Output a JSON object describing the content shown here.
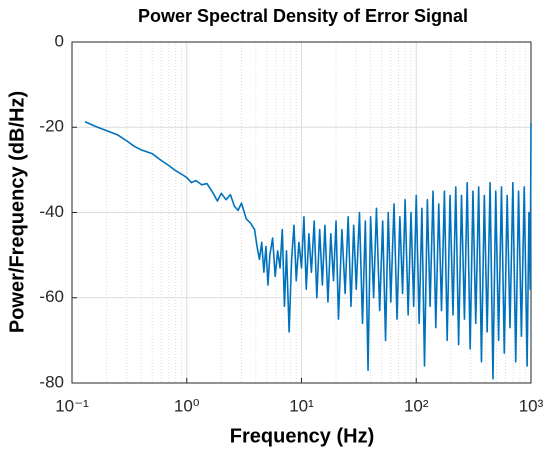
{
  "chart_data": {
    "type": "line",
    "title": "Power Spectral Density of Error Signal",
    "x_label": "Frequency (Hz)",
    "y_label": "Power/Frequency (dB/Hz)",
    "xscale": "log",
    "xlim": [
      0.1,
      1000
    ],
    "xticks": [
      {
        "value": 0.1,
        "label": "10⁻¹"
      },
      {
        "value": 1,
        "label": "10⁰"
      },
      {
        "value": 10,
        "label": "10¹"
      },
      {
        "value": 100,
        "label": "10²"
      },
      {
        "value": 1000,
        "label": "10³"
      }
    ],
    "ylim": [
      -80,
      0
    ],
    "yticks": [
      0,
      -20,
      -40,
      -60,
      -80
    ],
    "grid": true,
    "minor_grid": true,
    "series": [
      {
        "color": "#0072bd",
        "x": [
          0.13,
          0.16,
          0.2,
          0.25,
          0.3,
          0.35,
          0.4,
          0.5,
          0.6,
          0.7,
          0.8,
          0.9,
          1.0,
          1.1,
          1.2,
          1.35,
          1.5,
          1.7,
          1.85,
          2.0,
          2.2,
          2.4,
          2.6,
          2.8,
          3.0,
          3.3,
          3.6,
          3.9,
          4.1,
          4.3,
          4.5,
          4.7,
          4.9,
          5.1,
          5.3,
          5.6,
          5.9,
          6.2,
          6.5,
          6.8,
          7.1,
          7.4,
          7.8,
          8.2,
          8.6,
          9,
          9.5,
          10,
          10.5,
          11,
          11.6,
          12.2,
          12.9,
          13.6,
          14.4,
          15.2,
          16,
          17,
          18,
          19,
          20,
          21,
          22.5,
          24,
          25.5,
          27,
          28.5,
          30,
          32,
          34,
          36,
          38,
          40,
          42.5,
          45,
          48,
          51,
          54,
          57,
          60,
          64,
          68,
          72,
          76,
          80,
          85,
          90,
          95,
          100,
          106,
          112,
          118,
          125,
          132,
          140,
          148,
          157,
          166,
          176,
          186,
          197,
          209,
          221,
          234,
          248,
          263,
          278,
          295,
          312,
          330,
          350,
          370,
          392,
          415,
          440,
          466,
          493,
          522,
          553,
          585,
          620,
          656,
          695,
          736,
          779,
          825,
          873,
          925,
          960,
          985,
          1000
        ],
        "values": [
          -18.7,
          -19.8,
          -20.8,
          -21.8,
          -23.2,
          -24.5,
          -25.3,
          -26.2,
          -27.8,
          -29,
          -30.2,
          -31,
          -31.8,
          -33,
          -32.5,
          -33.5,
          -33.2,
          -35.5,
          -37.3,
          -35.5,
          -37,
          -35.8,
          -38.5,
          -39.5,
          -37.8,
          -41.5,
          -42.5,
          -44,
          -48,
          -51,
          -47,
          -54,
          -48,
          -57,
          -50,
          -46,
          -55,
          -49,
          -53,
          -44,
          -62,
          -49,
          -68,
          -51,
          -43,
          -56,
          -47,
          -53,
          -41,
          -58,
          -45,
          -54,
          -42,
          -60,
          -44,
          -57,
          -43,
          -61,
          -45,
          -56,
          -42,
          -65,
          -44,
          -59,
          -41,
          -62,
          -43,
          -58,
          -40,
          -66,
          -42,
          -77,
          -41,
          -60,
          -39,
          -63,
          -42,
          -70,
          -40,
          -61,
          -38,
          -65,
          -41,
          -59,
          -37,
          -64,
          -40,
          -62,
          -36,
          -66,
          -39,
          -76,
          -37,
          -62,
          -35,
          -67,
          -38,
          -63,
          -35,
          -70,
          -36,
          -64,
          -34,
          -71,
          -36,
          -65,
          -33,
          -72,
          -35,
          -66,
          -34,
          -75,
          -36,
          -68,
          -33,
          -79,
          -35,
          -70,
          -34,
          -73,
          -36,
          -67,
          -33,
          -75,
          -35,
          -69,
          -34,
          -76,
          -40,
          -58,
          -19
        ]
      }
    ]
  }
}
